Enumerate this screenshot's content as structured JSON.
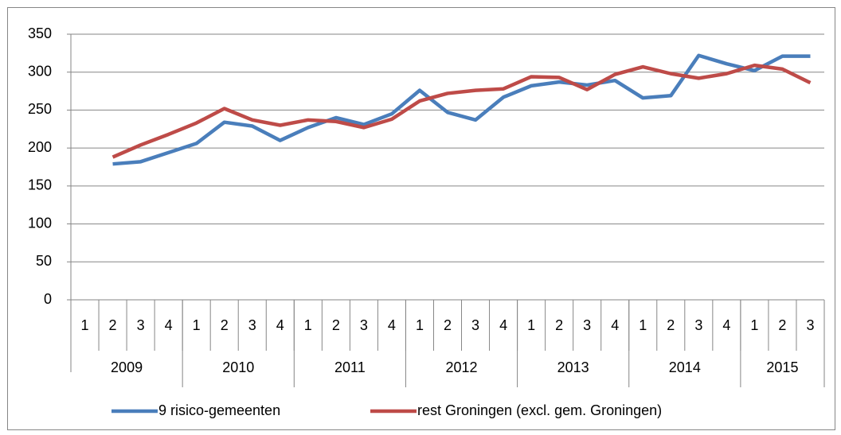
{
  "chart_data": {
    "type": "line",
    "groups": [
      {
        "label": "2009",
        "quarters": [
          "1",
          "2",
          "3",
          "4"
        ]
      },
      {
        "label": "2010",
        "quarters": [
          "1",
          "2",
          "3",
          "4"
        ]
      },
      {
        "label": "2011",
        "quarters": [
          "1",
          "2",
          "3",
          "4"
        ]
      },
      {
        "label": "2012",
        "quarters": [
          "1",
          "2",
          "3",
          "4"
        ]
      },
      {
        "label": "2013",
        "quarters": [
          "1",
          "2",
          "3",
          "4"
        ]
      },
      {
        "label": "2014",
        "quarters": [
          "1",
          "2",
          "3",
          "4"
        ]
      },
      {
        "label": "2015",
        "quarters": [
          "1",
          "2",
          "3"
        ]
      }
    ],
    "series": [
      {
        "name": "9 risico-gemeenten",
        "color": "#4a7ebb",
        "values": [
          null,
          179,
          182,
          194,
          206,
          234,
          229,
          210,
          227,
          240,
          231,
          245,
          276,
          247,
          237,
          267,
          282,
          287,
          283,
          289,
          266,
          269,
          322,
          311,
          302,
          321,
          321
        ]
      },
      {
        "name": "rest Groningen (excl. gem. Groningen)",
        "color": "#be4b48",
        "values": [
          null,
          188,
          204,
          218,
          233,
          252,
          237,
          230,
          237,
          235,
          227,
          238,
          262,
          272,
          276,
          278,
          294,
          293,
          277,
          297,
          307,
          298,
          292,
          298,
          309,
          304,
          286
        ]
      }
    ],
    "ylim": [
      0,
      350
    ],
    "yticks": [
      0,
      50,
      100,
      150,
      200,
      250,
      300,
      350
    ],
    "grid": true,
    "legend": "bottom"
  }
}
